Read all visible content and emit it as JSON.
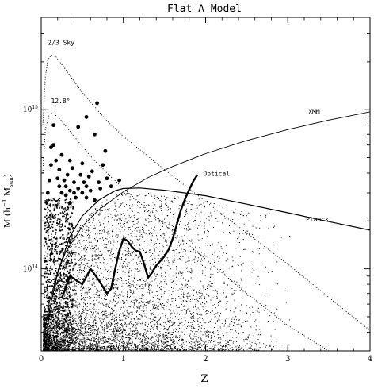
{
  "chart_data": {
    "type": "scatter",
    "title": "Flat Λ Model",
    "xlabel": "Z",
    "ylabel_base": "M (h",
    "ylabel_sup": "−1",
    "ylabel_mid": " M",
    "ylabel_sub": "sun",
    "ylabel_end": ")",
    "x_ticks": [
      {
        "value": 0,
        "label": "0"
      },
      {
        "value": 1,
        "label": "1"
      },
      {
        "value": 2,
        "label": "2"
      },
      {
        "value": 3,
        "label": "3"
      },
      {
        "value": 4,
        "label": "4"
      }
    ],
    "y_ticks": [
      {
        "value": 100000000000000.0,
        "base": "10",
        "exp": "14"
      },
      {
        "value": 1000000000000000.0,
        "base": "10",
        "exp": "15"
      }
    ],
    "xlim": [
      0,
      4
    ],
    "ylim": [
      30500000000000.0,
      3800000000000000.0
    ],
    "y_scale": "log",
    "grid": false,
    "curves": [
      {
        "name": "2/3 Sky",
        "style": "dotted",
        "points": [
          [
            0.02,
            800000000000000.0
          ],
          [
            0.05,
            1600000000000000.0
          ],
          [
            0.08,
            2050000000000000.0
          ],
          [
            0.12,
            2200000000000000.0
          ],
          [
            0.18,
            2150000000000000.0
          ],
          [
            0.3,
            1780000000000000.0
          ],
          [
            0.5,
            1280000000000000.0
          ],
          [
            0.8,
            850000000000000.0
          ],
          [
            1.0,
            680000000000000.0
          ],
          [
            1.5,
            420000000000000.0
          ],
          [
            2.0,
            265000000000000.0
          ],
          [
            2.5,
            168000000000000.0
          ],
          [
            3.0,
            107000000000000.0
          ],
          [
            3.5,
            66000000000000.0
          ],
          [
            4.0,
            41000000000000.0
          ]
        ]
      },
      {
        "name": "12.8°",
        "style": "dotted",
        "points": [
          [
            0.02,
            400000000000000.0
          ],
          [
            0.05,
            750000000000000.0
          ],
          [
            0.1,
            940000000000000.0
          ],
          [
            0.15,
            950000000000000.0
          ],
          [
            0.25,
            850000000000000.0
          ],
          [
            0.4,
            680000000000000.0
          ],
          [
            0.6,
            510000000000000.0
          ],
          [
            0.8,
            400000000000000.0
          ],
          [
            1.0,
            320000000000000.0
          ],
          [
            1.5,
            190000000000000.0
          ],
          [
            2.0,
            115000000000000.0
          ],
          [
            2.5,
            70000000000000.0
          ],
          [
            3.0,
            44000000000000.0
          ],
          [
            3.5,
            30500000000000.0
          ]
        ]
      },
      {
        "name": "XMM",
        "style": "solid-thin",
        "points": [
          [
            0.03,
            31000000000000.0
          ],
          [
            0.05,
            42000000000000.0
          ],
          [
            0.1,
            62000000000000.0
          ],
          [
            0.2,
            95000000000000.0
          ],
          [
            0.3,
            128000000000000.0
          ],
          [
            0.5,
            185000000000000.0
          ],
          [
            0.7,
            235000000000000.0
          ],
          [
            1.0,
            305000000000000.0
          ],
          [
            1.3,
            375000000000000.0
          ],
          [
            1.6,
            440000000000000.0
          ],
          [
            2.0,
            530000000000000.0
          ],
          [
            2.5,
            640000000000000.0
          ],
          [
            3.0,
            750000000000000.0
          ],
          [
            3.5,
            860000000000000.0
          ],
          [
            4.0,
            970000000000000.0
          ]
        ]
      },
      {
        "name": "Planck",
        "style": "solid",
        "points": [
          [
            0.05,
            30500000000000.0
          ],
          [
            0.1,
            55000000000000.0
          ],
          [
            0.2,
            95000000000000.0
          ],
          [
            0.35,
            160000000000000.0
          ],
          [
            0.5,
            215000000000000.0
          ],
          [
            0.7,
            270000000000000.0
          ],
          [
            0.9,
            310000000000000.0
          ],
          [
            1.0,
            320000000000000.0
          ],
          [
            1.2,
            322000000000000.0
          ],
          [
            1.5,
            312000000000000.0
          ],
          [
            2.0,
            288000000000000.0
          ],
          [
            2.5,
            255000000000000.0
          ],
          [
            3.0,
            225000000000000.0
          ],
          [
            3.5,
            198000000000000.0
          ],
          [
            4.0,
            175000000000000.0
          ]
        ]
      },
      {
        "name": "Optical",
        "style": "thick",
        "points": [
          [
            0.25,
            65000000000000.0
          ],
          [
            0.35,
            90000000000000.0
          ],
          [
            0.5,
            80000000000000.0
          ],
          [
            0.6,
            100000000000000.0
          ],
          [
            0.7,
            85000000000000.0
          ],
          [
            0.8,
            70000000000000.0
          ],
          [
            0.85,
            75000000000000.0
          ],
          [
            0.9,
            100000000000000.0
          ],
          [
            0.95,
            130000000000000.0
          ],
          [
            1.0,
            155000000000000.0
          ],
          [
            1.05,
            150000000000000.0
          ],
          [
            1.1,
            138000000000000.0
          ],
          [
            1.15,
            130000000000000.0
          ],
          [
            1.2,
            128000000000000.0
          ],
          [
            1.25,
            108000000000000.0
          ],
          [
            1.3,
            88000000000000.0
          ],
          [
            1.35,
            95000000000000.0
          ],
          [
            1.4,
            105000000000000.0
          ],
          [
            1.45,
            112000000000000.0
          ],
          [
            1.5,
            120000000000000.0
          ],
          [
            1.55,
            132000000000000.0
          ],
          [
            1.6,
            155000000000000.0
          ],
          [
            1.65,
            190000000000000.0
          ],
          [
            1.7,
            235000000000000.0
          ],
          [
            1.75,
            275000000000000.0
          ],
          [
            1.8,
            315000000000000.0
          ],
          [
            1.85,
            355000000000000.0
          ],
          [
            1.9,
            390000000000000.0
          ]
        ]
      }
    ],
    "curve_labels": [
      {
        "text": "2/3 Sky",
        "x": 0.08,
        "y": 2550000000000000.0
      },
      {
        "text": "12.8°",
        "x": 0.12,
        "y": 1100000000000000.0
      },
      {
        "text": "XMM",
        "x": 3.25,
        "y": 940000000000000.0
      },
      {
        "text": "Optical",
        "x": 1.97,
        "y": 385000000000000.0
      },
      {
        "text": "Planck",
        "x": 3.22,
        "y": 198000000000000.0
      }
    ],
    "large_points": [
      [
        0.08,
        300000000000000.0
      ],
      [
        0.1,
        360000000000000.0
      ],
      [
        0.12,
        450000000000000.0
      ],
      [
        0.15,
        600000000000000.0
      ],
      [
        0.18,
        480000000000000.0
      ],
      [
        0.2,
        370000000000000.0
      ],
      [
        0.22,
        330000000000000.0
      ],
      [
        0.22,
        420000000000000.0
      ],
      [
        0.25,
        300000000000000.0
      ],
      [
        0.28,
        360000000000000.0
      ],
      [
        0.3,
        290000000000000.0
      ],
      [
        0.3,
        330000000000000.0
      ],
      [
        0.32,
        390000000000000.0
      ],
      [
        0.35,
        260000000000000.0
      ],
      [
        0.35,
        310000000000000.0
      ],
      [
        0.38,
        430000000000000.0
      ],
      [
        0.4,
        300000000000000.0
      ],
      [
        0.4,
        350000000000000.0
      ],
      [
        0.42,
        280000000000000.0
      ],
      [
        0.45,
        320000000000000.0
      ],
      [
        0.45,
        780000000000000.0
      ],
      [
        0.48,
        390000000000000.0
      ],
      [
        0.5,
        300000000000000.0
      ],
      [
        0.5,
        460000000000000.0
      ],
      [
        0.52,
        350000000000000.0
      ],
      [
        0.55,
        280000000000000.0
      ],
      [
        0.55,
        330000000000000.0
      ],
      [
        0.58,
        380000000000000.0
      ],
      [
        0.6,
        310000000000000.0
      ],
      [
        0.62,
        410000000000000.0
      ],
      [
        0.65,
        270000000000000.0
      ],
      [
        0.65,
        700000000000000.0
      ],
      [
        0.68,
        1100000000000000.0
      ],
      [
        0.7,
        350000000000000.0
      ],
      [
        0.72,
        320000000000000.0
      ],
      [
        0.75,
        450000000000000.0
      ],
      [
        0.78,
        550000000000000.0
      ],
      [
        0.8,
        370000000000000.0
      ],
      [
        0.85,
        330000000000000.0
      ],
      [
        0.95,
        360000000000000.0
      ],
      [
        0.15,
        800000000000000.0
      ],
      [
        0.25,
        520000000000000.0
      ],
      [
        0.12,
        580000000000000.0
      ],
      [
        0.35,
        480000000000000.0
      ],
      [
        0.55,
        900000000000000.0
      ]
    ],
    "scatter_field": {
      "count": 7000,
      "z_range": [
        0.02,
        3.05
      ],
      "m_min": 30500000000000.0
    }
  }
}
